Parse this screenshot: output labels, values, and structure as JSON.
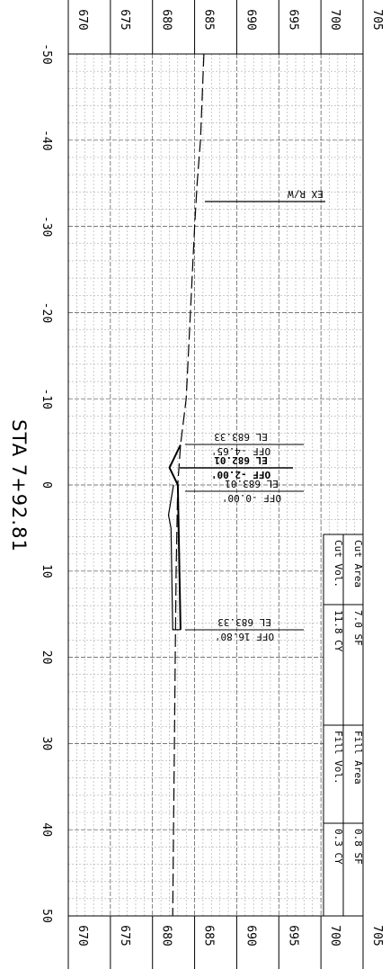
{
  "station_label": "STA 7+92.81",
  "elevation_ticks": [
    "670",
    "675",
    "680",
    "685",
    "690",
    "695",
    "700",
    "705"
  ],
  "offset_ticks": [
    "-50",
    "-40",
    "-30",
    "-20",
    "-10",
    "0",
    "10",
    "20",
    "30",
    "40",
    "50"
  ],
  "row_label": "EX R/W",
  "annotations": [
    {
      "el": "EL 683.33",
      "off": "OFF -4.65'",
      "bold": false
    },
    {
      "el": "EL 682.01",
      "off": "OFF -2.00'",
      "bold": true
    },
    {
      "el": "EL 683.01",
      "off": "OFF -0.00'",
      "bold": false
    },
    {
      "el": "EL 683.33",
      "off": "OFF 16.80'",
      "bold": false
    }
  ],
  "quantities": {
    "cut_area_label": "Cut Area",
    "cut_area_value": "7.0 SF",
    "cut_vol_label": "Cut Vol.",
    "cut_vol_value": "11.8 CY",
    "fill_area_label": "Fill Area",
    "fill_area_value": "0.8 SF",
    "fill_vol_label": "Fill Vol.",
    "fill_vol_value": "0.3 CY"
  },
  "chart_data": {
    "type": "line",
    "title": "STA 7+92.81",
    "offset_range": [
      -50,
      50
    ],
    "elevation_range": [
      670,
      705
    ],
    "grid": true,
    "series": [
      {
        "style": "dashed",
        "points": [
          [
            -50,
            686.1
          ],
          [
            -40,
            685.7
          ],
          [
            -35,
            685.3
          ],
          [
            -30,
            685.0
          ],
          [
            -20,
            684.5
          ],
          [
            -10,
            684.0
          ],
          [
            -4.65,
            683.33
          ],
          [
            0,
            683.0
          ],
          [
            10,
            682.8
          ],
          [
            20,
            682.7
          ],
          [
            30,
            682.6
          ],
          [
            40,
            682.5
          ],
          [
            50,
            682.4
          ]
        ]
      },
      {
        "style": "solid",
        "points": [
          [
            -4.65,
            683.33
          ],
          [
            -2.0,
            682.01
          ],
          [
            0.0,
            683.01
          ],
          [
            16.8,
            683.33
          ]
        ]
      },
      {
        "style": "solid",
        "points": [
          [
            0.0,
            682.5
          ],
          [
            3.5,
            681.9
          ],
          [
            5.0,
            682.2
          ],
          [
            16.8,
            682.4
          ],
          [
            16.8,
            683.33
          ]
        ]
      }
    ]
  }
}
